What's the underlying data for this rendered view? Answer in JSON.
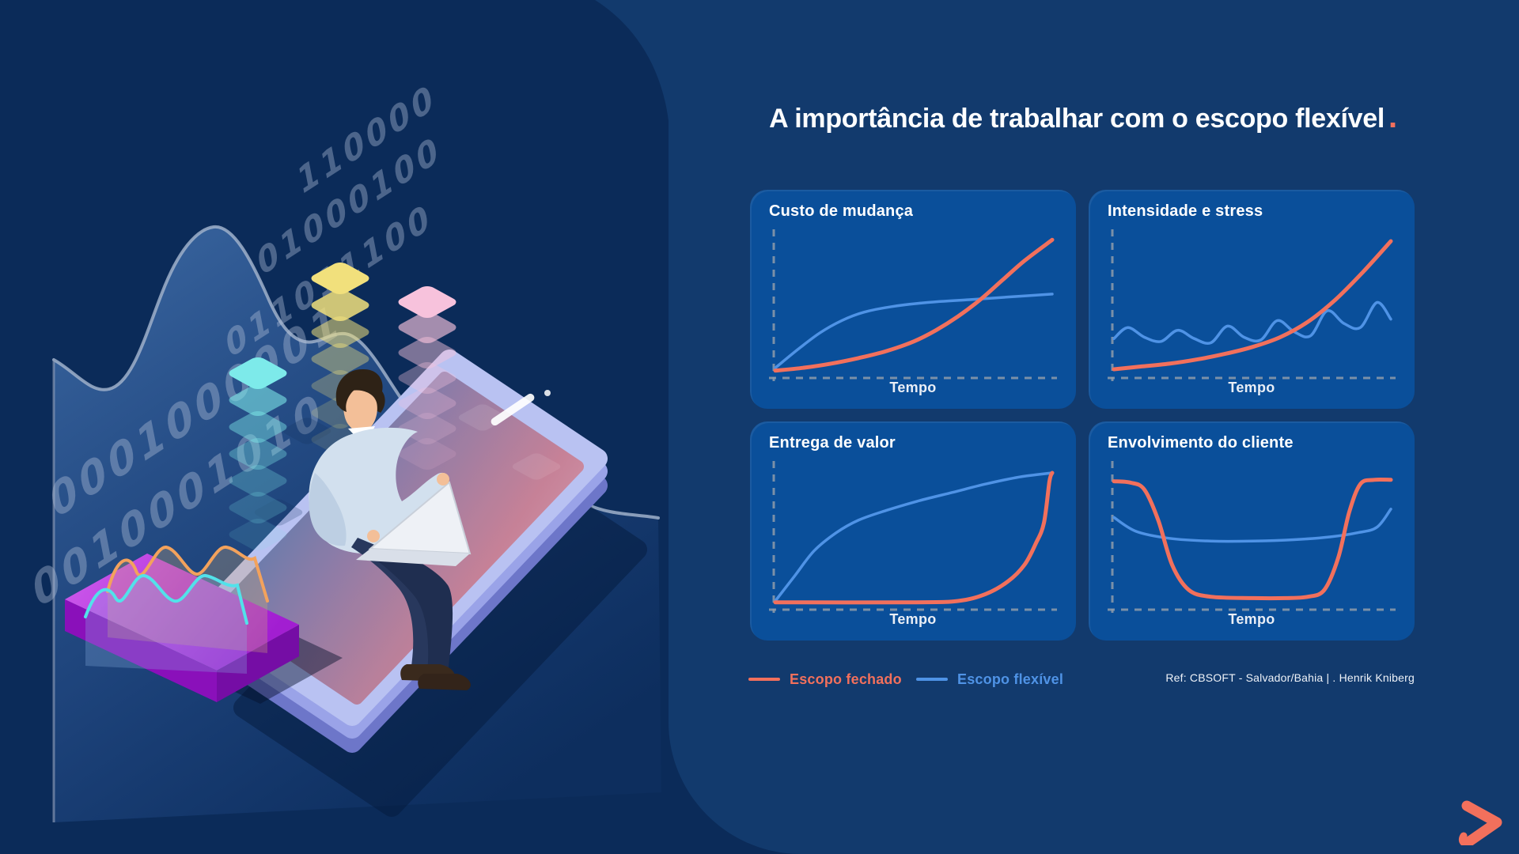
{
  "title": {
    "text": "A importância de trabalhar com o escopo flexível",
    "dot": "."
  },
  "colors": {
    "background": "#0b2b59",
    "panel": "#123a6d",
    "card": "#0a4f9a",
    "accent_orange": "#f2705c",
    "accent_blue": "#4f93e6",
    "axis_gray": "#8f9cab"
  },
  "legend": {
    "items": [
      {
        "label": "Escopo fechado",
        "color": "#f2705c"
      },
      {
        "label": "Escopo flexível",
        "color": "#4f93e6"
      }
    ]
  },
  "reference": {
    "text": "Ref: CBSOFT - Salvador/Bahia  | . Henrik Kniberg"
  },
  "illustration": {
    "binary_rows": [
      "110000",
      "01000100",
      "011011100",
      "0001000001",
      "0010001010"
    ],
    "stack_colors": {
      "cyan": "#7deaea",
      "yellow": "#f1e07c",
      "pink": "#f7c2dc"
    }
  },
  "chart_data": [
    {
      "type": "line",
      "title": "Custo de mudança",
      "xlabel": "Tempo",
      "ylabel": "",
      "x_range": [
        0,
        100
      ],
      "y_range": [
        0,
        100
      ],
      "grid": false,
      "series": [
        {
          "name": "Escopo fechado",
          "color": "#f2705c",
          "x": [
            0,
            10,
            20,
            30,
            40,
            50,
            58,
            66,
            74,
            82,
            90,
            100
          ],
          "y": [
            3,
            5,
            8,
            12,
            17,
            24,
            32,
            42,
            54,
            68,
            82,
            97
          ]
        },
        {
          "name": "Escopo flexível",
          "color": "#4f93e6",
          "x": [
            0,
            8,
            16,
            24,
            32,
            42,
            55,
            70,
            85,
            100
          ],
          "y": [
            5,
            18,
            30,
            39,
            45,
            49,
            52,
            54,
            56,
            58
          ]
        }
      ]
    },
    {
      "type": "line",
      "title": "Intensidade e stress",
      "xlabel": "Tempo",
      "ylabel": "",
      "x_range": [
        0,
        100
      ],
      "y_range": [
        0,
        100
      ],
      "grid": false,
      "series": [
        {
          "name": "Escopo fechado",
          "color": "#f2705c",
          "x": [
            0,
            10,
            20,
            30,
            40,
            50,
            60,
            70,
            80,
            90,
            100
          ],
          "y": [
            4,
            6,
            8,
            11,
            15,
            20,
            27,
            38,
            54,
            74,
            96
          ]
        },
        {
          "name": "Escopo flexível",
          "color": "#4f93e6",
          "x": [
            0,
            5,
            11,
            17,
            23,
            29,
            35,
            41,
            47,
            53,
            59,
            65,
            71,
            77,
            83,
            89,
            95,
            100
          ],
          "y": [
            26,
            34,
            27,
            24,
            32,
            26,
            23,
            35,
            27,
            25,
            39,
            31,
            28,
            46,
            37,
            34,
            52,
            40
          ]
        }
      ]
    },
    {
      "type": "line",
      "title": "Entrega de valor",
      "xlabel": "Tempo",
      "ylabel": "",
      "x_range": [
        0,
        100
      ],
      "y_range": [
        0,
        100
      ],
      "grid": false,
      "series": [
        {
          "name": "Escopo fechado",
          "color": "#f2705c",
          "x": [
            0,
            50,
            66,
            76,
            84,
            90,
            94,
            97,
            99,
            100
          ],
          "y": [
            3,
            3,
            4,
            9,
            18,
            30,
            45,
            60,
            90,
            96
          ]
        },
        {
          "name": "Escopo flexível",
          "color": "#4f93e6",
          "x": [
            0,
            7,
            14,
            22,
            30,
            40,
            52,
            64,
            76,
            88,
            100
          ],
          "y": [
            4,
            22,
            40,
            53,
            62,
            69,
            76,
            82,
            88,
            93,
            96
          ]
        }
      ]
    },
    {
      "type": "line",
      "title": "Envolvimento do cliente",
      "xlabel": "Tempo",
      "ylabel": "",
      "x_range": [
        0,
        100
      ],
      "y_range": [
        0,
        100
      ],
      "grid": false,
      "series": [
        {
          "name": "Escopo fechado",
          "color": "#f2705c",
          "x": [
            0,
            6,
            11,
            16,
            21,
            27,
            35,
            50,
            62,
            70,
            76,
            81,
            85,
            89,
            94,
            100
          ],
          "y": [
            90,
            89,
            84,
            62,
            30,
            12,
            7,
            6,
            6,
            7,
            12,
            35,
            68,
            88,
            91,
            91
          ]
        },
        {
          "name": "Escopo flexível",
          "color": "#4f93e6",
          "x": [
            0,
            8,
            20,
            35,
            50,
            65,
            78,
            88,
            95,
            100
          ],
          "y": [
            64,
            54,
            49,
            47,
            47,
            48,
            50,
            53,
            57,
            70
          ]
        }
      ]
    }
  ]
}
